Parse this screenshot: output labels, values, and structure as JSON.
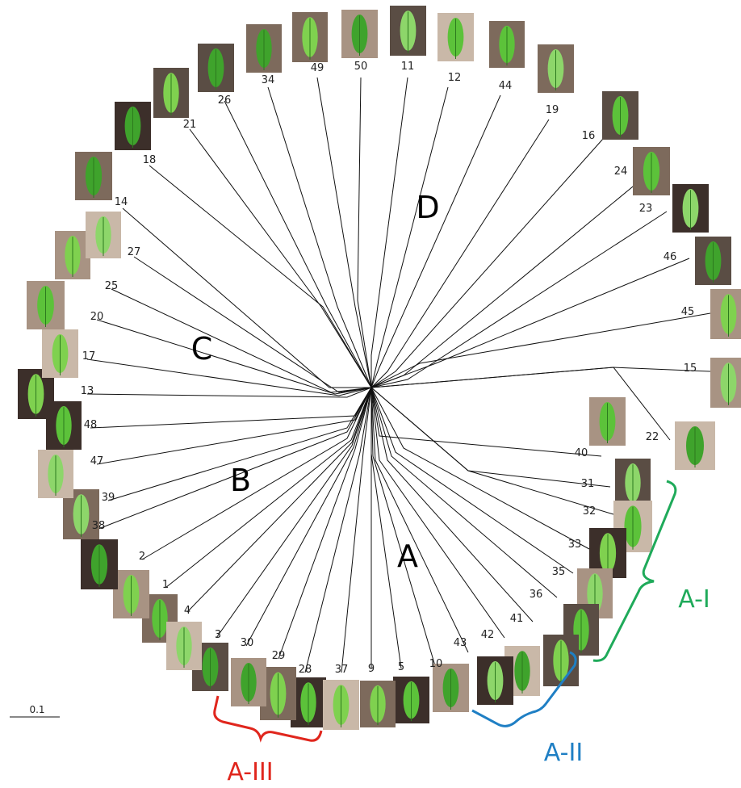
{
  "figure": {
    "clades": [
      {
        "id": "A",
        "label": "A"
      },
      {
        "id": "B",
        "label": "B"
      },
      {
        "id": "C",
        "label": "C"
      },
      {
        "id": "D",
        "label": "D"
      }
    ],
    "subgroups": [
      {
        "id": "A-I",
        "label": "A-I",
        "color": "#1faa5a"
      },
      {
        "id": "A-II",
        "label": "A-II",
        "color": "#1f7fc4"
      },
      {
        "id": "A-III",
        "label": "A-III",
        "color": "#e0261d"
      }
    ],
    "scale_bar": {
      "label": "0.1",
      "value": 0.1
    },
    "leaf_palette": {
      "background": [
        "#7d6a5c",
        "#a89383",
        "#5a4d44",
        "#c9b8a8",
        "#3c2f2a"
      ],
      "leaf": [
        "#5cc23a",
        "#7fd14f",
        "#3fa32c",
        "#8dd66a"
      ]
    },
    "taxa": [
      "1",
      "2",
      "3",
      "4",
      "5",
      "9",
      "10",
      "11",
      "12",
      "13",
      "14",
      "15",
      "16",
      "17",
      "18",
      "19",
      "20",
      "21",
      "22",
      "23",
      "24",
      "25",
      "26",
      "27",
      "28",
      "29",
      "30",
      "31",
      "32",
      "33",
      "34",
      "35",
      "36",
      "37",
      "38",
      "39",
      "40",
      "41",
      "42",
      "43",
      "44",
      "45",
      "46",
      "47",
      "48",
      "49",
      "50"
    ]
  }
}
